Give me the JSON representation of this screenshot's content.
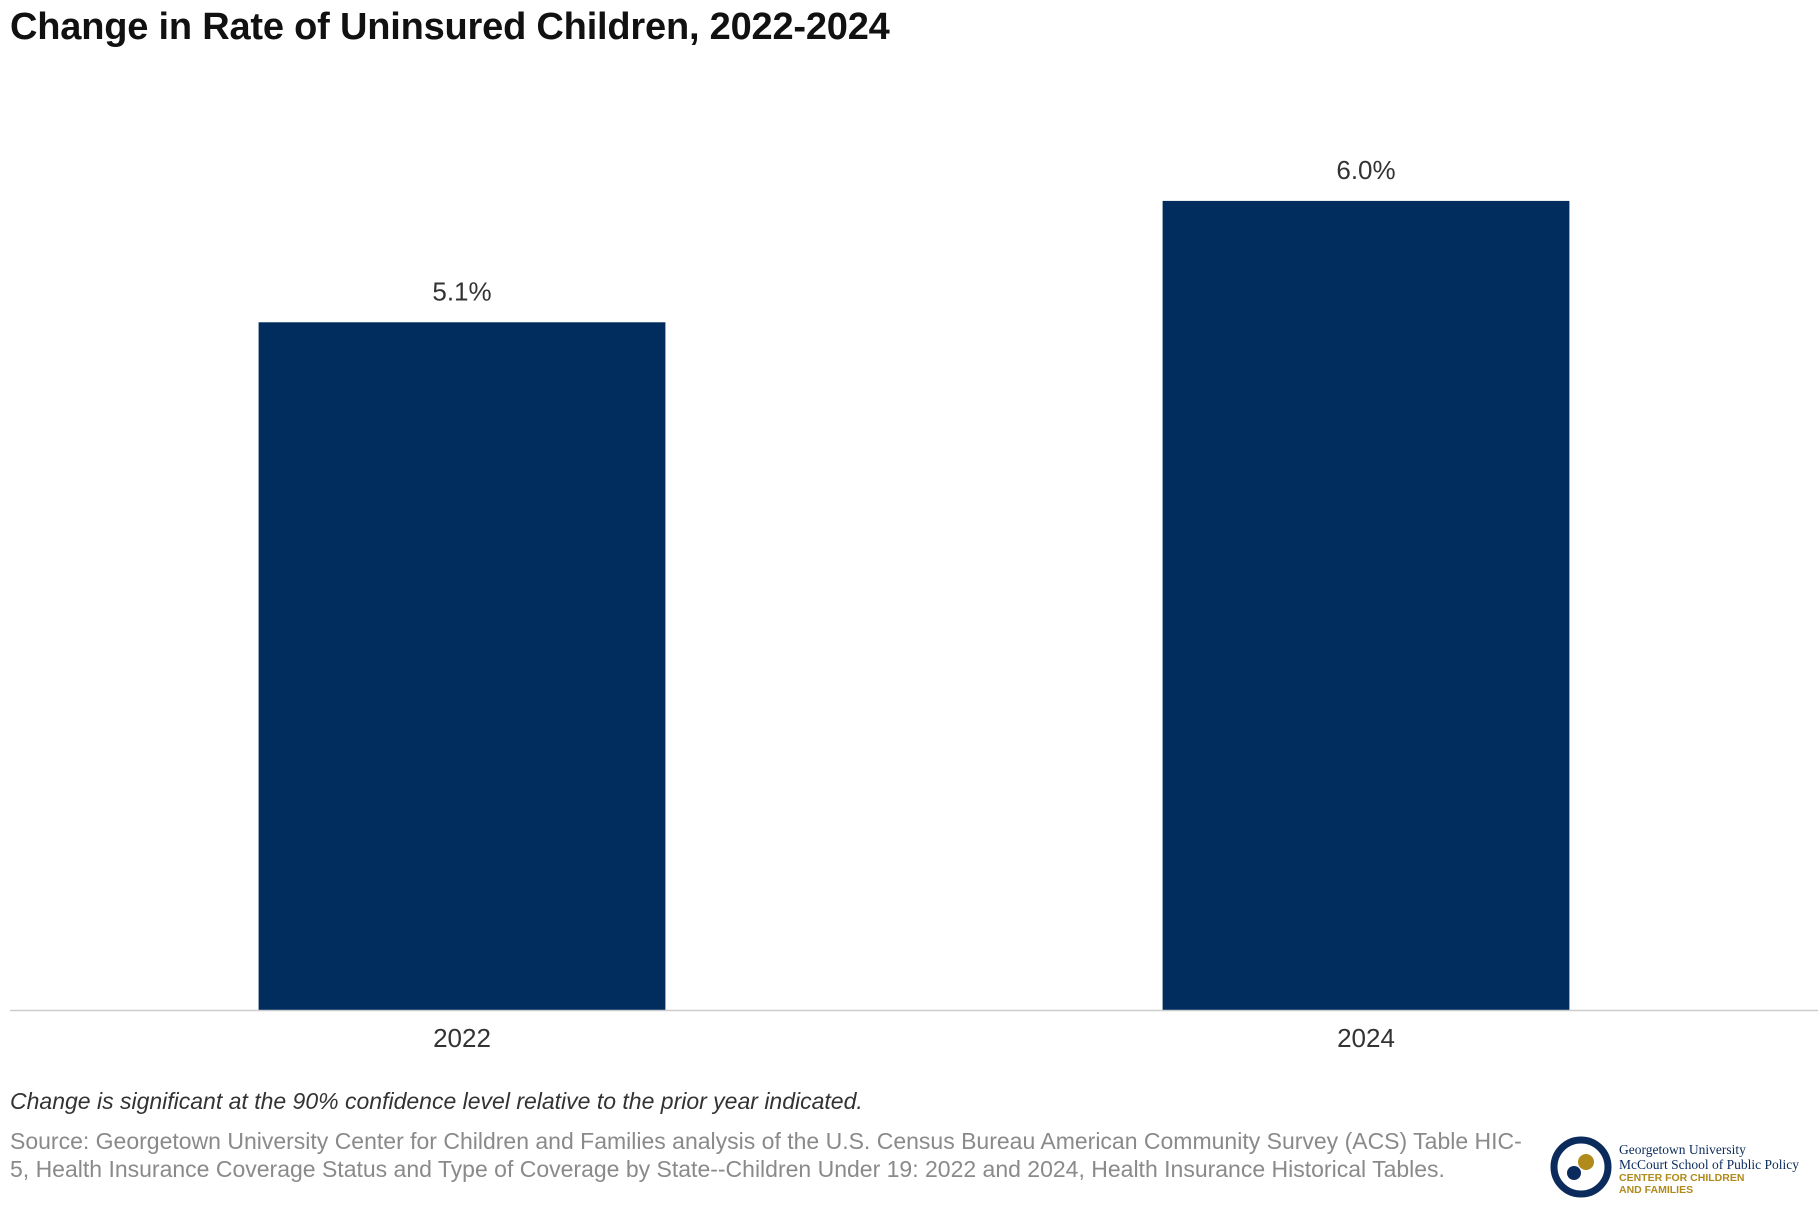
{
  "title": "Change in Rate of Uninsured Children, 2022-2024",
  "chart_data": {
    "type": "bar",
    "categories": [
      "2022",
      "2024"
    ],
    "values": [
      5.1,
      6.0
    ],
    "value_labels": [
      "5.1%",
      "6.0%"
    ],
    "ylim": [
      0,
      6.6
    ],
    "grid": false,
    "color": "#002d5e",
    "title": "Change in Rate of Uninsured Children, 2022-2024",
    "xlabel": "",
    "ylabel": ""
  },
  "note": "Change is significant at the 90% confidence level relative to the prior year indicated.",
  "source": "Source: Georgetown University Center for Children and Families analysis of the U.S. Census Bureau American Community Survey (ACS) Table HIC-5, Health Insurance Coverage Status and Type of Coverage by State--Children Under 19: 2022 and 2024, Health Insurance Historical Tables.",
  "logo": {
    "line1": "Georgetown University",
    "line2": "McCourt School of Public Policy",
    "line3": "CENTER FOR CHILDREN",
    "line4": "AND FAMILIES",
    "colors": {
      "navy": "#0b2b5c",
      "gold": "#b08a1a"
    }
  }
}
